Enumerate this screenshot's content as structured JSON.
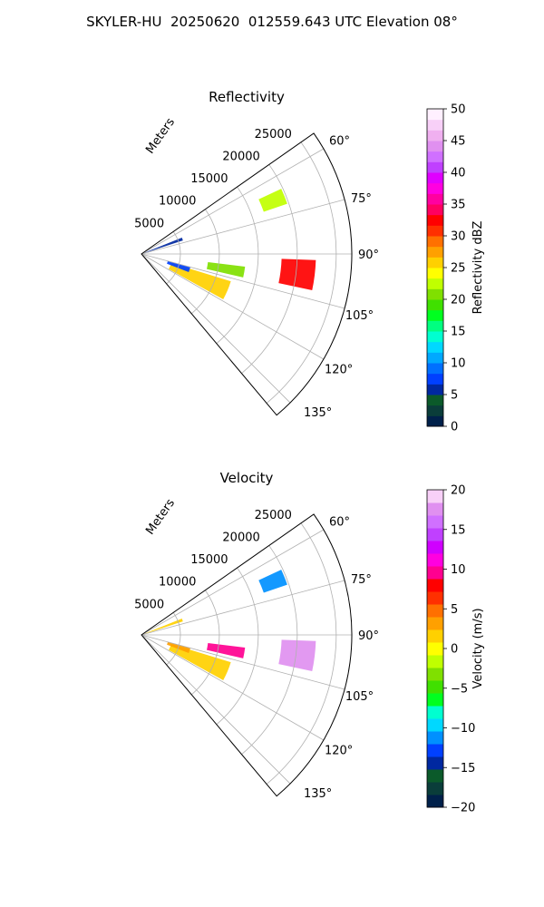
{
  "figure_title": "SKYLER-HU  20250620  012559.643 UTC Elevation 08°",
  "chart_data": [
    {
      "type": "heatmap",
      "projection": "polar-sector",
      "title": "Reflectivity",
      "range_label": "Meters",
      "range_ticks": [
        "5000",
        "10000",
        "15000",
        "20000",
        "25000"
      ],
      "range_values": [
        5000,
        10000,
        15000,
        20000,
        25000
      ],
      "rmax": 27000,
      "azimuth_range": [
        55,
        140
      ],
      "azimuth_ticks": [
        "60°",
        "75°",
        "90°",
        "105°",
        "120°",
        "135°"
      ],
      "azimuth_values": [
        60,
        75,
        90,
        105,
        120,
        135
      ],
      "grid": true,
      "colorbar": {
        "label": "Reflectivity dBZ",
        "vmin": 0,
        "vmax": 50,
        "ticks": [
          "0",
          "5",
          "10",
          "15",
          "20",
          "25",
          "30",
          "35",
          "40",
          "45",
          "50"
        ],
        "tick_values": [
          0,
          5,
          10,
          15,
          20,
          25,
          30,
          35,
          40,
          45,
          50
        ],
        "colors": [
          "#00204a",
          "#0a3d3a",
          "#0b5a2a",
          "#0028a0",
          "#0040ff",
          "#0070ff",
          "#00a8ff",
          "#00d8ff",
          "#00ffd0",
          "#00ff80",
          "#00ff20",
          "#40e000",
          "#80e000",
          "#c0ff00",
          "#ffff00",
          "#ffd000",
          "#ffa000",
          "#ff7000",
          "#ff3000",
          "#ff0000",
          "#ff0060",
          "#ff00a0",
          "#ff00e0",
          "#e000ff",
          "#c040ff",
          "#d070ff",
          "#e090f0",
          "#f0b0f0",
          "#f8d0f8",
          "#fff0ff"
        ]
      },
      "echoes": [
        {
          "r": 18200,
          "az": 68,
          "dr": 1600,
          "daz": 3,
          "value": 22
        },
        {
          "r": 2800,
          "az": 70,
          "dr": 2800,
          "daz": 2,
          "value": 6
        },
        {
          "r": 20200,
          "az": 97,
          "dr": 2200,
          "daz": 5,
          "value": 32
        },
        {
          "r": 11000,
          "az": 100,
          "dr": 2400,
          "daz": 3,
          "value": 20
        },
        {
          "r": 8000,
          "az": 113,
          "dr": 4000,
          "daz": 6,
          "value": 25
        },
        {
          "r": 5000,
          "az": 108,
          "dr": 1500,
          "daz": 3,
          "value": 8
        }
      ]
    },
    {
      "type": "heatmap",
      "projection": "polar-sector",
      "title": "Velocity",
      "range_label": "Meters",
      "range_ticks": [
        "5000",
        "10000",
        "15000",
        "20000",
        "25000"
      ],
      "range_values": [
        5000,
        10000,
        15000,
        20000,
        25000
      ],
      "rmax": 27000,
      "azimuth_range": [
        55,
        140
      ],
      "azimuth_ticks": [
        "60°",
        "75°",
        "90°",
        "105°",
        "120°",
        "135°"
      ],
      "azimuth_values": [
        60,
        75,
        90,
        105,
        120,
        135
      ],
      "grid": true,
      "colorbar": {
        "label": "Velocity (m/s)",
        "vmin": -20,
        "vmax": 20,
        "ticks": [
          "−20",
          "−15",
          "−10",
          "−5",
          "0",
          "5",
          "10",
          "15",
          "20"
        ],
        "tick_values": [
          -20,
          -15,
          -10,
          -5,
          0,
          5,
          10,
          15,
          20
        ],
        "colors": [
          "#00204a",
          "#0a3d3a",
          "#0b5a2a",
          "#0028a0",
          "#0040ff",
          "#0090ff",
          "#00d8ff",
          "#00ffd0",
          "#00ff20",
          "#40e000",
          "#80e000",
          "#c0ff00",
          "#ffff00",
          "#ffd000",
          "#ffa000",
          "#ff7000",
          "#ff3000",
          "#ff0000",
          "#ff0090",
          "#ff00e0",
          "#d000ff",
          "#c040ff",
          "#d070ff",
          "#e090f0",
          "#f8d0f8"
        ]
      },
      "echoes": [
        {
          "r": 18200,
          "az": 68,
          "dr": 1600,
          "daz": 3,
          "value": -12
        },
        {
          "r": 2800,
          "az": 70,
          "dr": 2800,
          "daz": 2,
          "value": 1
        },
        {
          "r": 20200,
          "az": 97,
          "dr": 2200,
          "daz": 5,
          "value": 17
        },
        {
          "r": 11000,
          "az": 100,
          "dr": 2400,
          "daz": 3,
          "value": 9
        },
        {
          "r": 8000,
          "az": 113,
          "dr": 4000,
          "daz": 6,
          "value": 2
        },
        {
          "r": 5000,
          "az": 108,
          "dr": 1500,
          "daz": 3,
          "value": 3
        }
      ]
    }
  ]
}
